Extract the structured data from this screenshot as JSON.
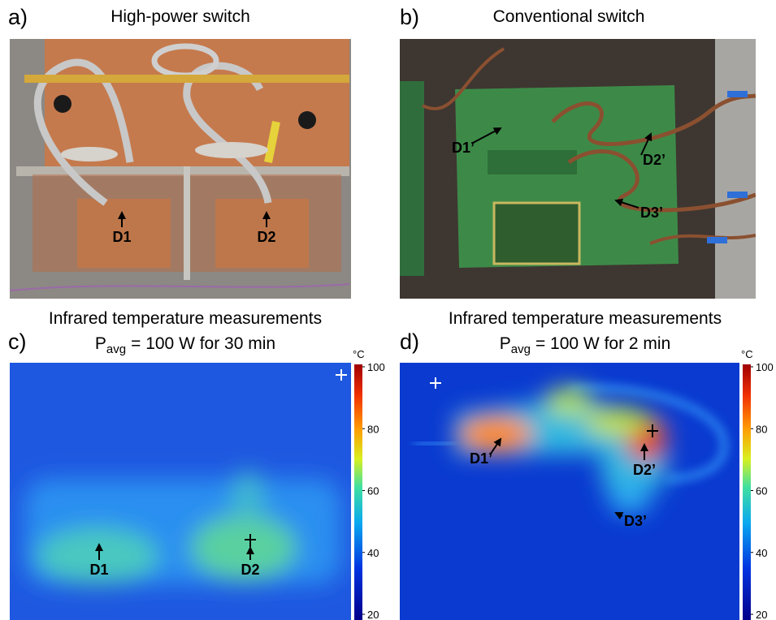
{
  "panels": [
    {
      "label": "a)",
      "title": "High-power switch",
      "annotations": [
        "D1",
        "D2"
      ]
    },
    {
      "label": "b)",
      "title": "Conventional switch",
      "annotations": [
        "D1’",
        "D2’",
        "D3’"
      ]
    },
    {
      "label": "c)",
      "title": "Infrared temperature measurements",
      "condition": {
        "symbol": "P",
        "subscript": "avg",
        "text": "= 100 W for 30 min"
      },
      "annotations": [
        "D1",
        "D2"
      ],
      "colorbar": {
        "unit": "°C",
        "range": [
          20,
          100
        ],
        "ticks": [
          20,
          40,
          60,
          80,
          100
        ]
      }
    },
    {
      "label": "d)",
      "title": "Infrared temperature measurements",
      "condition": {
        "symbol": "P",
        "subscript": "avg",
        "text": "= 100 W for 2 min"
      },
      "annotations": [
        "D1’",
        "D2’",
        "D3’"
      ],
      "colorbar": {
        "unit": "°C",
        "range": [
          20,
          100
        ],
        "ticks": [
          20,
          40,
          60,
          80,
          100
        ]
      }
    }
  ]
}
